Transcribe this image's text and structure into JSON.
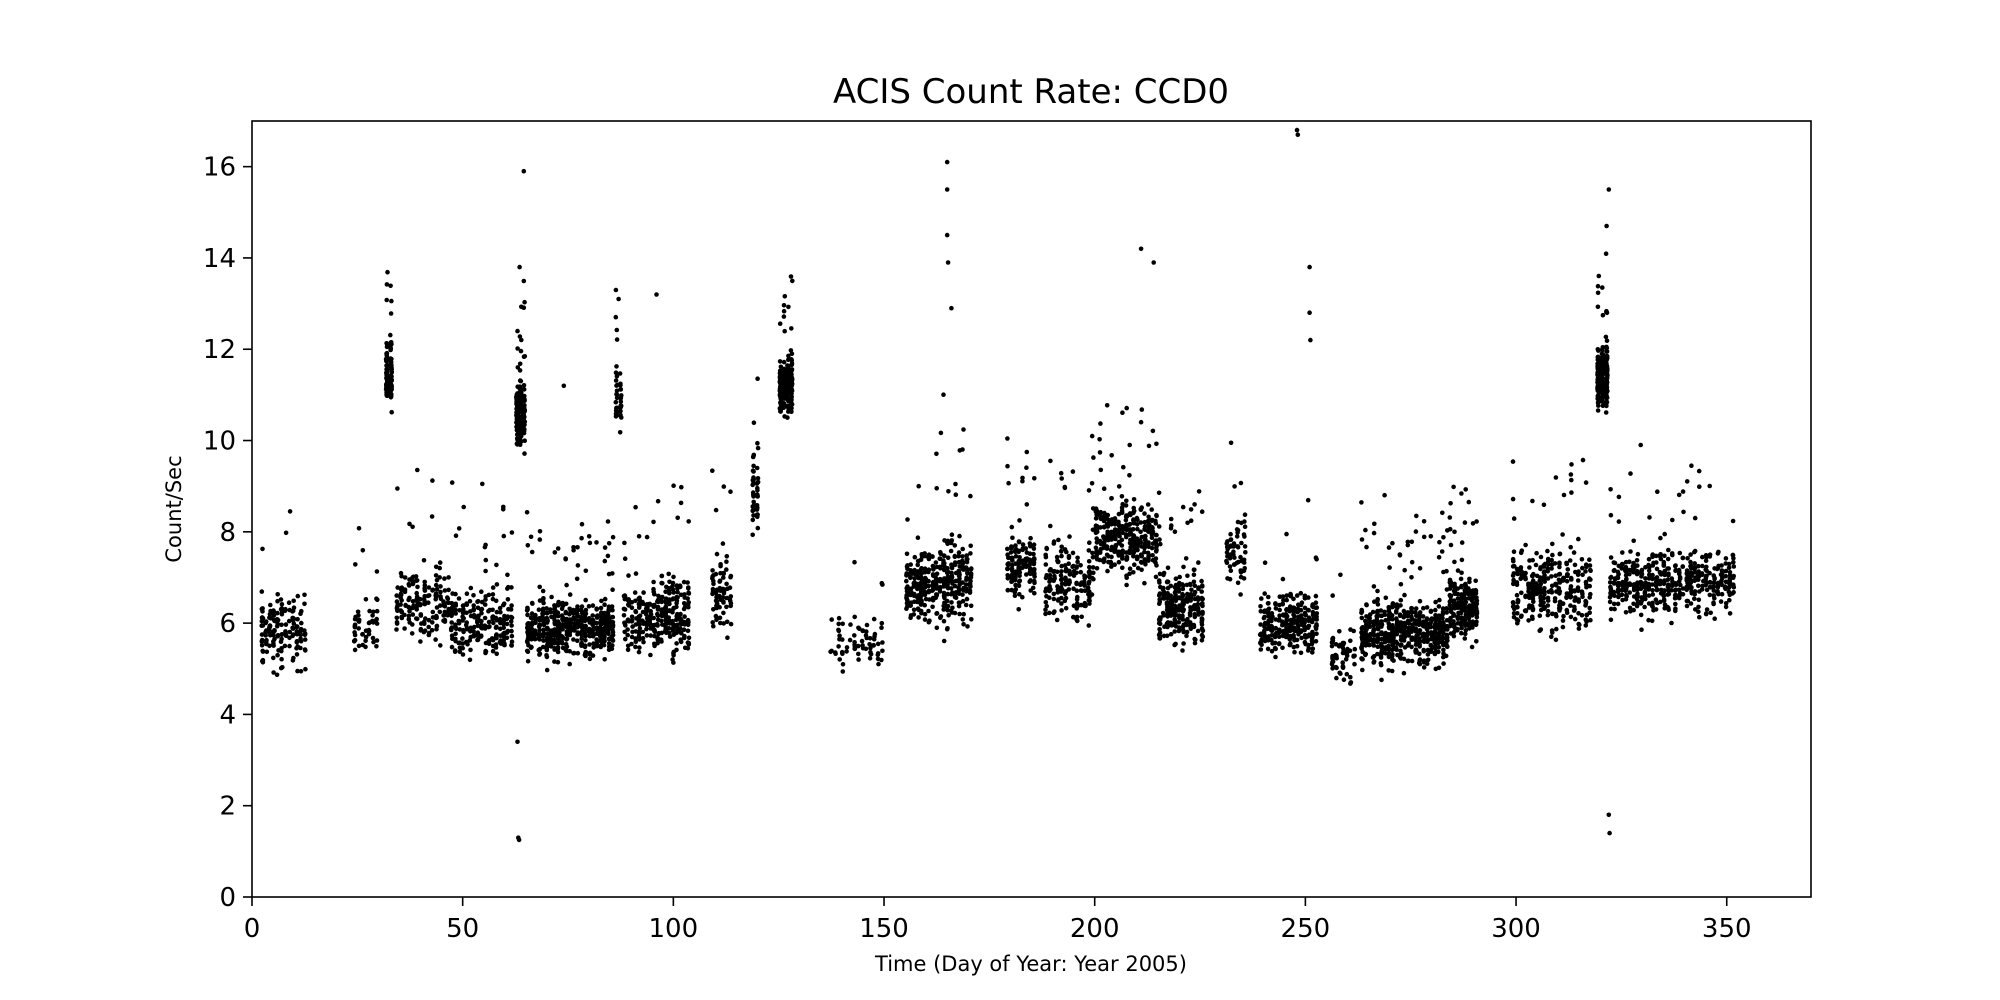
{
  "chart_data": {
    "type": "scatter",
    "title": "ACIS Count Rate: CCD0",
    "xlabel": "Time (Day of Year: Year 2005)",
    "ylabel": "Count/Sec",
    "xlim": [
      0,
      370
    ],
    "ylim": [
      0,
      17
    ],
    "xticks": [
      0,
      50,
      100,
      150,
      200,
      250,
      300,
      350
    ],
    "yticks": [
      0,
      2,
      4,
      6,
      8,
      10,
      12,
      14,
      16
    ],
    "grid": false,
    "legend": "none",
    "point_color": "#000000",
    "observation_groups": [
      {
        "x": [
          2,
          13
        ],
        "y_center": 5.8,
        "y_spread": 1.0,
        "n": 160
      },
      {
        "x": [
          24,
          30
        ],
        "y_center": 5.9,
        "y_spread": 0.8,
        "n": 50
      },
      {
        "x": [
          31.5,
          33.5
        ],
        "y_center": 11.5,
        "y_spread": 0.9,
        "n": 110
      },
      {
        "x": [
          34,
          47
        ],
        "y_center": 6.4,
        "y_spread": 1.0,
        "n": 170
      },
      {
        "x": [
          47,
          62
        ],
        "y_center": 6.0,
        "y_spread": 0.9,
        "n": 230
      },
      {
        "x": [
          62.5,
          65
        ],
        "y_center": 10.6,
        "y_spread": 0.9,
        "n": 170
      },
      {
        "x": [
          65,
          86
        ],
        "y_center": 5.9,
        "y_spread": 0.8,
        "n": 520
      },
      {
        "x": [
          86,
          88
        ],
        "y_center": 11.0,
        "y_spread": 0.8,
        "n": 40
      },
      {
        "x": [
          88,
          95
        ],
        "y_center": 6.1,
        "y_spread": 0.9,
        "n": 110
      },
      {
        "x": [
          95,
          104
        ],
        "y_center": 6.2,
        "y_spread": 1.0,
        "n": 190
      },
      {
        "x": [
          109,
          114
        ],
        "y_center": 6.5,
        "y_spread": 1.0,
        "n": 80
      },
      {
        "x": [
          118.5,
          120.5
        ],
        "y_center": 8.8,
        "y_spread": 1.0,
        "n": 45
      },
      {
        "x": [
          125,
          128.5
        ],
        "y_center": 11.2,
        "y_spread": 0.8,
        "n": 200
      },
      {
        "x": [
          137,
          150
        ],
        "y_center": 5.6,
        "y_spread": 0.8,
        "n": 70
      },
      {
        "x": [
          155,
          162
        ],
        "y_center": 6.8,
        "y_spread": 1.0,
        "n": 160
      },
      {
        "x": [
          162,
          171
        ],
        "y_center": 7.0,
        "y_spread": 1.2,
        "n": 210
      },
      {
        "x": [
          179,
          186
        ],
        "y_center": 7.2,
        "y_spread": 0.9,
        "n": 140
      },
      {
        "x": [
          188,
          200
        ],
        "y_center": 6.9,
        "y_spread": 1.1,
        "n": 180
      },
      {
        "x": [
          200,
          215
        ],
        "y_center": 7.9,
        "y_spread": 1.0,
        "n": 330
      },
      {
        "x": [
          215,
          226
        ],
        "y_center": 6.3,
        "y_spread": 0.9,
        "n": 260
      },
      {
        "x": [
          231,
          236
        ],
        "y_center": 7.5,
        "y_spread": 1.0,
        "n": 60
      },
      {
        "x": [
          239,
          253
        ],
        "y_center": 6.0,
        "y_spread": 0.9,
        "n": 260
      },
      {
        "x": [
          256,
          262
        ],
        "y_center": 5.3,
        "y_spread": 0.8,
        "n": 60
      },
      {
        "x": [
          263,
          284
        ],
        "y_center": 5.8,
        "y_spread": 0.9,
        "n": 560
      },
      {
        "x": [
          284,
          291
        ],
        "y_center": 6.4,
        "y_spread": 0.9,
        "n": 200
      },
      {
        "x": [
          299,
          318
        ],
        "y_center": 6.7,
        "y_spread": 1.0,
        "n": 320
      },
      {
        "x": [
          319,
          322
        ],
        "y_center": 11.4,
        "y_spread": 0.9,
        "n": 220
      },
      {
        "x": [
          322,
          352
        ],
        "y_center": 6.9,
        "y_spread": 0.9,
        "n": 480
      }
    ],
    "outlier_points": [
      [
        63,
        3.4
      ],
      [
        63.2,
        1.3
      ],
      [
        63.4,
        1.25
      ],
      [
        64.5,
        15.9
      ],
      [
        63.5,
        13.8
      ],
      [
        165,
        16.1
      ],
      [
        165,
        15.5
      ],
      [
        165,
        14.5
      ],
      [
        165.2,
        13.9
      ],
      [
        166,
        12.9
      ],
      [
        248,
        16.8
      ],
      [
        248.2,
        16.7
      ],
      [
        251,
        13.8
      ],
      [
        251,
        12.8
      ],
      [
        251.2,
        12.2
      ],
      [
        322,
        15.5
      ],
      [
        321.5,
        14.7
      ],
      [
        322,
        1.8
      ],
      [
        322.2,
        1.4
      ],
      [
        96,
        13.2
      ],
      [
        87,
        13.1
      ],
      [
        74,
        11.2
      ],
      [
        211,
        14.2
      ],
      [
        214,
        13.9
      ]
    ]
  }
}
